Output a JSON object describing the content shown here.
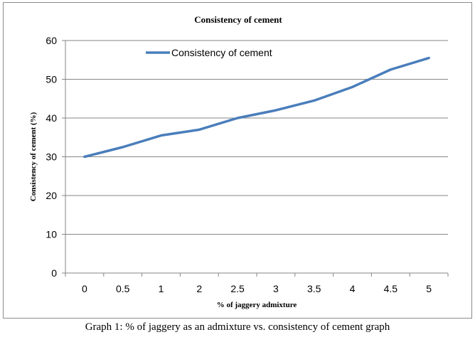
{
  "chart_data": {
    "type": "line",
    "title": "Consistency of cement",
    "xlabel": "% of jaggery admixture",
    "ylabel": "Consistency of cement (%)",
    "categories": [
      "0",
      "0.5",
      "1",
      "2",
      "2.5",
      "3",
      "3.5",
      "4",
      "4.5",
      "5"
    ],
    "series": [
      {
        "name": "Consistency of cement",
        "values": [
          30,
          32.5,
          35.5,
          37,
          40,
          42,
          44.5,
          48,
          52.5,
          55.5
        ]
      }
    ],
    "ylim": [
      0,
      60
    ],
    "yticks": [
      0,
      10,
      20,
      30,
      40,
      50,
      60
    ],
    "grid": true,
    "legend_position": "top",
    "colors": {
      "line": "#4a7ebb",
      "grid": "#868686",
      "axis": "#868686"
    }
  },
  "caption": "Graph 1: % of jaggery as an admixture vs. consistency of cement graph"
}
